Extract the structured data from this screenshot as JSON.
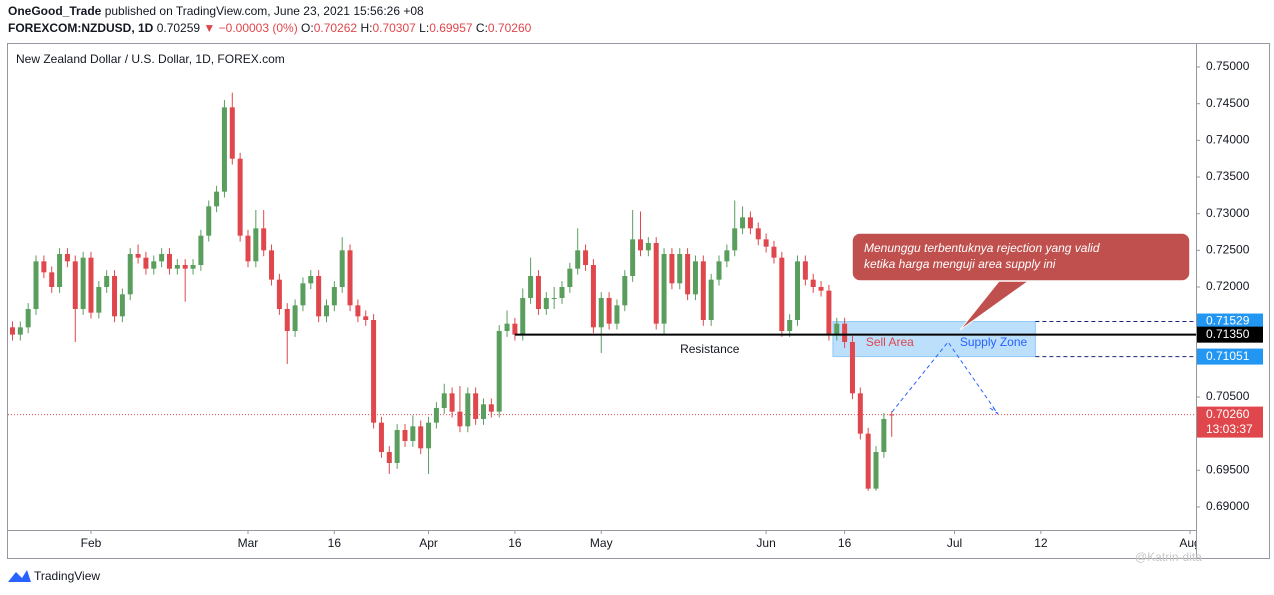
{
  "header": {
    "author": "OneGood_Trade",
    "published": " published on TradingView.com, June 23, 2021 15:56:26 +08",
    "symbol": "FOREXCOM:NZDUSD, 1D",
    "last": "0.70259",
    "change": "▼ −0.00003 (0%)",
    "o_label": "O:",
    "o": "0.70262",
    "h_label": "H:",
    "h": "0.70307",
    "l_label": "L:",
    "l": "0.69957",
    "c_label": "C:",
    "c": "0.70260"
  },
  "chart_data": {
    "type": "candlestick",
    "title": "New Zealand Dollar / U.S. Dollar, 1D, FOREX.com",
    "up_color": "#5a9e5e",
    "down_color": "#e0474c",
    "grid": false,
    "ylim": [
      0.68686,
      0.75314
    ],
    "yticks": [
      {
        "value": 0.69,
        "label": "0.69000"
      },
      {
        "value": 0.695,
        "label": "0.69500"
      },
      {
        "value": 0.7,
        "label": "0.70000"
      },
      {
        "value": 0.705,
        "label": "0.70500"
      },
      {
        "value": 0.71,
        "label": "0.71000"
      },
      {
        "value": 0.715,
        "label": "0.71500"
      },
      {
        "value": 0.72,
        "label": "0.72000"
      },
      {
        "value": 0.725,
        "label": "0.72500"
      },
      {
        "value": 0.73,
        "label": "0.73000"
      },
      {
        "value": 0.735,
        "label": "0.73500"
      },
      {
        "value": 0.74,
        "label": "0.74000"
      },
      {
        "value": 0.745,
        "label": "0.74500"
      },
      {
        "value": 0.75,
        "label": "0.75000"
      }
    ],
    "xlim": [
      -0.57,
      150.76
    ],
    "xticks": [
      {
        "value": 10,
        "label": "Feb"
      },
      {
        "value": 30,
        "label": "Mar"
      },
      {
        "value": 41,
        "label": "16"
      },
      {
        "value": 53,
        "label": "Apr"
      },
      {
        "value": 64,
        "label": "16"
      },
      {
        "value": 75,
        "label": "May"
      },
      {
        "value": 96,
        "label": "Jun"
      },
      {
        "value": 106,
        "label": "16"
      },
      {
        "value": 120,
        "label": "Jul"
      },
      {
        "value": 131,
        "label": "12"
      },
      {
        "value": 150,
        "label": "Aug"
      }
    ],
    "ohlc": [
      [
        0.7145,
        0.7153,
        0.7127,
        0.7135
      ],
      [
        0.7135,
        0.7153,
        0.7127,
        0.7145
      ],
      [
        0.7145,
        0.7178,
        0.7137,
        0.717
      ],
      [
        0.717,
        0.7243,
        0.7162,
        0.7235
      ],
      [
        0.7235,
        0.7243,
        0.7212,
        0.722
      ],
      [
        0.722,
        0.7228,
        0.7192,
        0.72
      ],
      [
        0.72,
        0.7253,
        0.7192,
        0.7245
      ],
      [
        0.7245,
        0.7253,
        0.7227,
        0.7235
      ],
      [
        0.7235,
        0.7243,
        0.7125,
        0.717
      ],
      [
        0.717,
        0.7248,
        0.7162,
        0.724
      ],
      [
        0.724,
        0.7248,
        0.7157,
        0.7165
      ],
      [
        0.7165,
        0.7208,
        0.7157,
        0.72
      ],
      [
        0.72,
        0.7223,
        0.7192,
        0.7215
      ],
      [
        0.7215,
        0.7223,
        0.7152,
        0.716
      ],
      [
        0.716,
        0.7198,
        0.7152,
        0.719
      ],
      [
        0.719,
        0.7253,
        0.7182,
        0.7245
      ],
      [
        0.7245,
        0.7258,
        0.7232,
        0.724
      ],
      [
        0.724,
        0.7248,
        0.7217,
        0.7225
      ],
      [
        0.7225,
        0.7243,
        0.7217,
        0.7235
      ],
      [
        0.7235,
        0.7253,
        0.7227,
        0.7245
      ],
      [
        0.7245,
        0.7253,
        0.7217,
        0.7225
      ],
      [
        0.7225,
        0.7238,
        0.7217,
        0.723
      ],
      [
        0.723,
        0.7238,
        0.718,
        0.7225
      ],
      [
        0.7225,
        0.7238,
        0.7217,
        0.723
      ],
      [
        0.723,
        0.7278,
        0.7222,
        0.727
      ],
      [
        0.727,
        0.7318,
        0.7262,
        0.731
      ],
      [
        0.731,
        0.7338,
        0.7302,
        0.733
      ],
      [
        0.733,
        0.7455,
        0.7322,
        0.7445
      ],
      [
        0.7445,
        0.7465,
        0.7367,
        0.7375
      ],
      [
        0.7375,
        0.7383,
        0.7262,
        0.727
      ],
      [
        0.727,
        0.7278,
        0.7227,
        0.7235
      ],
      [
        0.7235,
        0.7305,
        0.7227,
        0.728
      ],
      [
        0.728,
        0.7305,
        0.7242,
        0.725
      ],
      [
        0.725,
        0.7258,
        0.7202,
        0.721
      ],
      [
        0.721,
        0.7218,
        0.7162,
        0.717
      ],
      [
        0.717,
        0.7178,
        0.7095,
        0.714
      ],
      [
        0.714,
        0.7183,
        0.7132,
        0.7175
      ],
      [
        0.7175,
        0.7213,
        0.7167,
        0.7205
      ],
      [
        0.7205,
        0.7223,
        0.7197,
        0.7215
      ],
      [
        0.7215,
        0.7223,
        0.7152,
        0.716
      ],
      [
        0.716,
        0.7183,
        0.7152,
        0.7175
      ],
      [
        0.7175,
        0.7208,
        0.7167,
        0.72
      ],
      [
        0.72,
        0.7268,
        0.7192,
        0.725
      ],
      [
        0.725,
        0.7258,
        0.7167,
        0.7175
      ],
      [
        0.7175,
        0.7183,
        0.7152,
        0.716
      ],
      [
        0.716,
        0.7168,
        0.7147,
        0.7155
      ],
      [
        0.7155,
        0.7163,
        0.7007,
        0.7015
      ],
      [
        0.7015,
        0.7023,
        0.6967,
        0.6975
      ],
      [
        0.6975,
        0.6983,
        0.6945,
        0.696
      ],
      [
        0.696,
        0.7013,
        0.6952,
        0.7005
      ],
      [
        0.7005,
        0.7013,
        0.6982,
        0.699
      ],
      [
        0.699,
        0.7025,
        0.6982,
        0.701
      ],
      [
        0.701,
        0.7018,
        0.6972,
        0.698
      ],
      [
        0.698,
        0.7023,
        0.6945,
        0.7015
      ],
      [
        0.7015,
        0.7043,
        0.7007,
        0.7035
      ],
      [
        0.7035,
        0.7068,
        0.7027,
        0.7055
      ],
      [
        0.7055,
        0.7063,
        0.7022,
        0.703
      ],
      [
        0.703,
        0.7065,
        0.7002,
        0.701
      ],
      [
        0.701,
        0.7063,
        0.7002,
        0.7055
      ],
      [
        0.7055,
        0.7063,
        0.7012,
        0.702
      ],
      [
        0.702,
        0.7048,
        0.7012,
        0.704
      ],
      [
        0.704,
        0.7048,
        0.7022,
        0.703
      ],
      [
        0.703,
        0.7148,
        0.7022,
        0.714
      ],
      [
        0.714,
        0.7168,
        0.7132,
        0.715
      ],
      [
        0.715,
        0.7158,
        0.7127,
        0.7135
      ],
      [
        0.7135,
        0.7198,
        0.7127,
        0.7185
      ],
      [
        0.7185,
        0.724,
        0.7177,
        0.7215
      ],
      [
        0.7215,
        0.7223,
        0.7162,
        0.717
      ],
      [
        0.717,
        0.7193,
        0.7162,
        0.7185
      ],
      [
        0.7185,
        0.72,
        0.717,
        0.7185
      ],
      [
        0.7185,
        0.7208,
        0.7177,
        0.72
      ],
      [
        0.72,
        0.7233,
        0.7192,
        0.7225
      ],
      [
        0.7225,
        0.728,
        0.7217,
        0.725
      ],
      [
        0.725,
        0.7258,
        0.7222,
        0.723
      ],
      [
        0.723,
        0.7238,
        0.7137,
        0.7145
      ],
      [
        0.7145,
        0.7193,
        0.711,
        0.7185
      ],
      [
        0.7185,
        0.7193,
        0.7142,
        0.715
      ],
      [
        0.715,
        0.7183,
        0.7142,
        0.7175
      ],
      [
        0.7175,
        0.7223,
        0.7167,
        0.7215
      ],
      [
        0.7215,
        0.7305,
        0.7207,
        0.7265
      ],
      [
        0.7265,
        0.7303,
        0.7242,
        0.725
      ],
      [
        0.725,
        0.7268,
        0.7242,
        0.726
      ],
      [
        0.726,
        0.7268,
        0.7142,
        0.715
      ],
      [
        0.715,
        0.7253,
        0.7135,
        0.7245
      ],
      [
        0.7245,
        0.7253,
        0.7197,
        0.7205
      ],
      [
        0.7205,
        0.7253,
        0.7197,
        0.7245
      ],
      [
        0.7245,
        0.7253,
        0.7182,
        0.719
      ],
      [
        0.719,
        0.7243,
        0.7182,
        0.7235
      ],
      [
        0.7235,
        0.7243,
        0.7147,
        0.7155
      ],
      [
        0.7155,
        0.7218,
        0.7147,
        0.721
      ],
      [
        0.721,
        0.7243,
        0.7202,
        0.7235
      ],
      [
        0.7235,
        0.7258,
        0.7227,
        0.725
      ],
      [
        0.725,
        0.7318,
        0.7242,
        0.728
      ],
      [
        0.728,
        0.731,
        0.7272,
        0.7295
      ],
      [
        0.7295,
        0.7303,
        0.7272,
        0.728
      ],
      [
        0.728,
        0.7288,
        0.7257,
        0.7265
      ],
      [
        0.7265,
        0.7273,
        0.7247,
        0.7255
      ],
      [
        0.7255,
        0.7263,
        0.7232,
        0.724
      ],
      [
        0.724,
        0.7248,
        0.7132,
        0.714
      ],
      [
        0.714,
        0.7163,
        0.7132,
        0.7155
      ],
      [
        0.7155,
        0.7243,
        0.7147,
        0.7235
      ],
      [
        0.7235,
        0.7243,
        0.7202,
        0.721
      ],
      [
        0.721,
        0.7218,
        0.7192,
        0.72
      ],
      [
        0.72,
        0.7208,
        0.7187,
        0.7195
      ],
      [
        0.7195,
        0.7203,
        0.7127,
        0.7135
      ],
      [
        0.7135,
        0.7158,
        0.7127,
        0.715
      ],
      [
        0.715,
        0.7158,
        0.7117,
        0.7125
      ],
      [
        0.7125,
        0.7133,
        0.7047,
        0.7055
      ],
      [
        0.7055,
        0.7063,
        0.6992,
        0.7
      ],
      [
        0.7,
        0.7008,
        0.6922,
        0.6925
      ],
      [
        0.6925,
        0.6983,
        0.6922,
        0.6975
      ],
      [
        0.6975,
        0.7028,
        0.6967,
        0.702
      ],
      [
        0.70262,
        0.70307,
        0.69957,
        0.7026
      ]
    ],
    "resistance": {
      "value": 0.7135,
      "label": "0.71350",
      "start": 64,
      "text": "Resistance",
      "color": "#000000"
    },
    "supply_zone": {
      "top": {
        "value": 0.71529,
        "label": "0.71529"
      },
      "bottom": {
        "value": 0.71051,
        "label": "0.71051"
      },
      "start": 104.5,
      "end": 130.3,
      "color": "#2196f3",
      "sell_text": "Sell Area",
      "zone_text": "Supply Zone"
    },
    "current_price": {
      "value": 0.7026,
      "label": "0.70260",
      "countdown": "13:03:37",
      "color": "#e0474c"
    },
    "callout": [
      "Menunggu terbentuknya rejection yang valid",
      "ketika harga menguji area supply ini"
    ]
  },
  "footer": {
    "brand": "TradingView",
    "watermark": "@Katrin-dita"
  }
}
